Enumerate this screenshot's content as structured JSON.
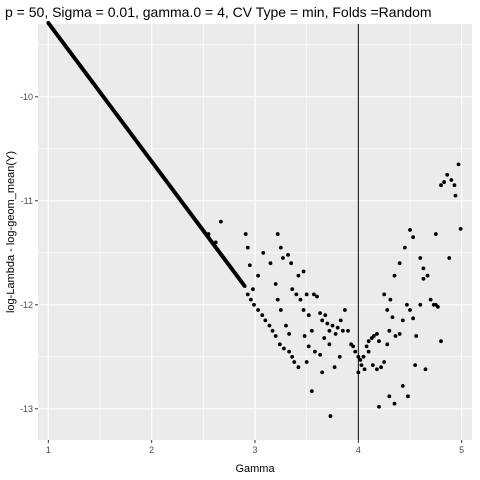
{
  "chart_data": {
    "type": "scatter",
    "title": "p = 50, Sigma = 0.01, gamma.0 = 4, CV Type = min, Folds =Random",
    "xlabel": "Gamma",
    "ylabel": "log-Lambda - log-geom_mean(Y)",
    "xlim": [
      0.9,
      5.1
    ],
    "ylim": [
      -13.3,
      -9.3
    ],
    "xticks": [
      1,
      2,
      3,
      4,
      5
    ],
    "yticks": [
      -13,
      -12,
      -11,
      -10
    ],
    "xtick_labels": [
      "1",
      "2",
      "3",
      "4",
      "5"
    ],
    "ytick_labels": [
      "-13",
      "-12",
      "-11",
      "-10"
    ],
    "grid": true,
    "panel_background": "#ebebeb",
    "grid_color": "#ffffff",
    "point_color": "#000000",
    "vline": 4,
    "line_segment": {
      "x_start": 1.0,
      "x_end": 2.9,
      "y_start": -9.29,
      "y_end": -11.82
    },
    "points": [
      [
        2.55,
        -11.32
      ],
      [
        2.62,
        -11.4
      ],
      [
        2.67,
        -11.2
      ],
      [
        2.93,
        -11.9
      ],
      [
        2.96,
        -11.95
      ],
      [
        2.99,
        -12.0
      ],
      [
        3.03,
        -12.05
      ],
      [
        3.07,
        -12.1
      ],
      [
        3.1,
        -12.15
      ],
      [
        3.14,
        -12.2
      ],
      [
        3.17,
        -12.25
      ],
      [
        3.2,
        -12.3
      ],
      [
        3.24,
        -12.38
      ],
      [
        3.28,
        -12.42
      ],
      [
        3.33,
        -12.45
      ],
      [
        3.36,
        -12.5
      ],
      [
        2.91,
        -11.32
      ],
      [
        2.93,
        -11.45
      ],
      [
        2.95,
        -11.62
      ],
      [
        2.98,
        -11.85
      ],
      [
        3.03,
        -11.72
      ],
      [
        3.08,
        -11.5
      ],
      [
        3.15,
        -11.6
      ],
      [
        3.22,
        -11.32
      ],
      [
        3.25,
        -11.45
      ],
      [
        3.27,
        -11.55
      ],
      [
        3.32,
        -11.52
      ],
      [
        3.35,
        -11.6
      ],
      [
        3.42,
        -11.72
      ],
      [
        3.47,
        -11.68
      ],
      [
        3.2,
        -11.8
      ],
      [
        3.22,
        -11.95
      ],
      [
        3.25,
        -12.05
      ],
      [
        3.3,
        -12.2
      ],
      [
        3.33,
        -12.28
      ],
      [
        3.36,
        -11.85
      ],
      [
        3.4,
        -11.9
      ],
      [
        3.44,
        -11.95
      ],
      [
        3.47,
        -12.05
      ],
      [
        3.5,
        -11.9
      ],
      [
        3.52,
        -12.1
      ],
      [
        3.55,
        -12.25
      ],
      [
        3.57,
        -11.9
      ],
      [
        3.6,
        -11.92
      ],
      [
        3.63,
        -12.08
      ],
      [
        3.65,
        -12.15
      ],
      [
        3.68,
        -12.1
      ],
      [
        3.7,
        -12.18
      ],
      [
        3.72,
        -12.25
      ],
      [
        3.75,
        -12.2
      ],
      [
        3.78,
        -12.28
      ],
      [
        3.8,
        -12.22
      ],
      [
        3.83,
        -12.15
      ],
      [
        3.85,
        -12.25
      ],
      [
        3.87,
        -12.05
      ],
      [
        3.9,
        -12.25
      ],
      [
        3.93,
        -12.38
      ],
      [
        3.95,
        -12.4
      ],
      [
        3.97,
        -12.45
      ],
      [
        3.48,
        -12.3
      ],
      [
        3.52,
        -12.4
      ],
      [
        3.58,
        -12.45
      ],
      [
        3.63,
        -12.48
      ],
      [
        3.67,
        -12.32
      ],
      [
        3.72,
        -12.38
      ],
      [
        3.77,
        -12.6
      ],
      [
        3.82,
        -12.5
      ],
      [
        3.38,
        -12.55
      ],
      [
        3.42,
        -12.6
      ],
      [
        3.5,
        -12.55
      ],
      [
        3.55,
        -12.83
      ],
      [
        3.65,
        -12.65
      ],
      [
        3.73,
        -13.07
      ],
      [
        4.0,
        -12.5
      ],
      [
        4.02,
        -12.53
      ],
      [
        4.05,
        -12.5
      ],
      [
        4.08,
        -12.4
      ],
      [
        4.1,
        -12.35
      ],
      [
        4.13,
        -12.32
      ],
      [
        4.15,
        -12.3
      ],
      [
        4.18,
        -12.28
      ],
      [
        4.0,
        -12.65
      ],
      [
        4.03,
        -12.58
      ],
      [
        4.06,
        -12.62
      ],
      [
        4.1,
        -12.45
      ],
      [
        4.14,
        -12.58
      ],
      [
        4.18,
        -12.62
      ],
      [
        4.2,
        -12.35
      ],
      [
        4.22,
        -12.6
      ],
      [
        4.25,
        -12.55
      ],
      [
        4.28,
        -12.38
      ],
      [
        4.3,
        -12.25
      ],
      [
        4.33,
        -12.12
      ],
      [
        4.36,
        -12.3
      ],
      [
        4.4,
        -12.28
      ],
      [
        4.43,
        -12.15
      ],
      [
        4.47,
        -12.0
      ],
      [
        4.5,
        -12.05
      ],
      [
        4.53,
        -12.13
      ],
      [
        4.56,
        -12.3
      ],
      [
        4.6,
        -12.0
      ],
      [
        4.25,
        -11.9
      ],
      [
        4.28,
        -12.05
      ],
      [
        4.31,
        -11.95
      ],
      [
        4.35,
        -11.72
      ],
      [
        4.4,
        -11.6
      ],
      [
        4.45,
        -11.45
      ],
      [
        4.5,
        -11.28
      ],
      [
        4.53,
        -11.35
      ],
      [
        4.6,
        -11.55
      ],
      [
        4.63,
        -11.65
      ],
      [
        4.67,
        -11.72
      ],
      [
        4.7,
        -11.95
      ],
      [
        4.73,
        -12.0
      ],
      [
        4.75,
        -12.0
      ],
      [
        4.77,
        -12.02
      ],
      [
        4.8,
        -12.35
      ],
      [
        4.75,
        -11.32
      ],
      [
        4.8,
        -10.85
      ],
      [
        4.83,
        -10.82
      ],
      [
        4.86,
        -10.75
      ],
      [
        4.9,
        -10.8
      ],
      [
        4.93,
        -10.85
      ],
      [
        4.94,
        -10.95
      ],
      [
        4.97,
        -10.65
      ],
      [
        4.99,
        -11.27
      ],
      [
        4.88,
        -11.55
      ],
      [
        4.63,
        -11.75
      ],
      [
        4.2,
        -12.98
      ],
      [
        4.3,
        -12.88
      ],
      [
        4.35,
        -12.95
      ],
      [
        4.43,
        -12.78
      ],
      [
        4.48,
        -12.88
      ],
      [
        4.55,
        -12.58
      ],
      [
        4.65,
        -12.62
      ]
    ]
  }
}
